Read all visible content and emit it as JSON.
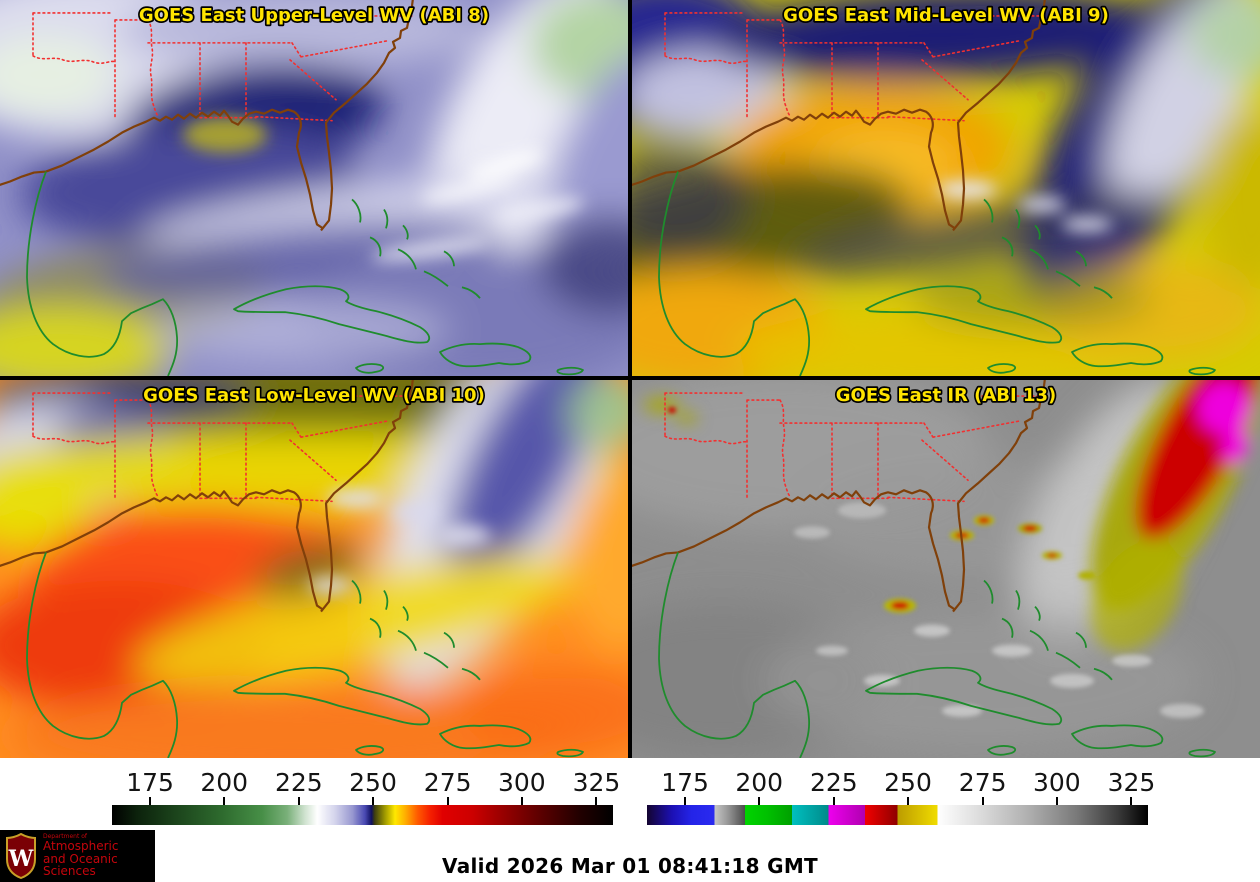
{
  "panels": [
    {
      "id": "abi8",
      "title": "GOES East Upper-Level WV (ABI 8)"
    },
    {
      "id": "abi9",
      "title": "GOES East Mid-Level WV (ABI 9)"
    },
    {
      "id": "abi10",
      "title": "GOES East Low-Level WV (ABI 10)"
    },
    {
      "id": "abi13",
      "title": "GOES East IR (ABI 13)"
    }
  ],
  "colorbars": {
    "ticks": [
      "175",
      "200",
      "225",
      "250",
      "275",
      "300",
      "325"
    ],
    "tick_percents": [
      7.6,
      22.4,
      37.3,
      52.1,
      67.0,
      81.8,
      96.7
    ],
    "wv": {
      "name": "water-vapor-colorbar",
      "stops": [
        [
          0,
          "#000000"
        ],
        [
          5,
          "#0c220c"
        ],
        [
          13,
          "#1c451c"
        ],
        [
          22,
          "#2e6b2e"
        ],
        [
          30,
          "#478f47"
        ],
        [
          35,
          "#7ab07a"
        ],
        [
          38.5,
          "#cfe2cf"
        ],
        [
          41,
          "#ffffff"
        ],
        [
          44.5,
          "#d4d4ec"
        ],
        [
          48,
          "#9898d0"
        ],
        [
          50.5,
          "#4949b2"
        ],
        [
          51.8,
          "#101060"
        ],
        [
          52.4,
          "#3c3c10"
        ],
        [
          54.5,
          "#a09a00"
        ],
        [
          56.5,
          "#ffe800"
        ],
        [
          58.5,
          "#ffb000"
        ],
        [
          61,
          "#ff5a00"
        ],
        [
          63.5,
          "#f52000"
        ],
        [
          66,
          "#e00000"
        ],
        [
          72,
          "#cc0000"
        ],
        [
          78,
          "#980000"
        ],
        [
          86,
          "#580000"
        ],
        [
          93,
          "#240000"
        ],
        [
          100,
          "#000000"
        ]
      ]
    },
    "ir": {
      "name": "ir-colorbar",
      "stops": [
        [
          0,
          "#140430"
        ],
        [
          5,
          "#1c10b4"
        ],
        [
          8.9,
          "#2424e8"
        ],
        [
          13.5,
          "#2a2af0"
        ],
        [
          13.5,
          "#c6c6c6"
        ],
        [
          16,
          "#9a9a9a"
        ],
        [
          19.6,
          "#4a4a4a"
        ],
        [
          19.6,
          "#00d400"
        ],
        [
          24,
          "#00c000"
        ],
        [
          28.9,
          "#00a000"
        ],
        [
          28.9,
          "#00c0c0"
        ],
        [
          36.2,
          "#008a8a"
        ],
        [
          36.2,
          "#ee00ee"
        ],
        [
          43.5,
          "#b000b0"
        ],
        [
          43.5,
          "#f20000"
        ],
        [
          50,
          "#8e0000"
        ],
        [
          50,
          "#bc9c00"
        ],
        [
          58,
          "#f0dc00"
        ],
        [
          58,
          "#ffffff"
        ],
        [
          66,
          "#dedede"
        ],
        [
          76,
          "#b0b0b0"
        ],
        [
          86,
          "#787878"
        ],
        [
          94,
          "#3a3a3a"
        ],
        [
          100,
          "#000000"
        ]
      ]
    }
  },
  "map_overlay_colors": {
    "state_borders": "#f23030",
    "us_coast": "#80400a",
    "caribbean_coast": "#1f8c2d"
  },
  "footer": {
    "valid_label": "Valid 2026 Mar 01 08:41:18 GMT",
    "logo": {
      "monogram": "W",
      "dept": "Department of",
      "line1": "Atmospheric",
      "line2": "and Oceanic Sciences",
      "background": "#000000",
      "text_color": "#c5050c"
    }
  },
  "title_style": {
    "text_color": "#ffe400",
    "outline_color": "#000000"
  }
}
